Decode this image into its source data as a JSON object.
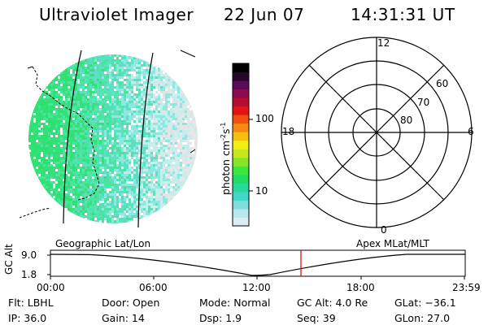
{
  "header": {
    "title": "Ultraviolet Imager",
    "date": "22 Jun 07",
    "time": "14:31:31 UT"
  },
  "colorbar": {
    "unit_label": "photon cm-2s-1",
    "ticks": [
      "100",
      "10"
    ],
    "palette": [
      "#d8eef0",
      "#b8e8ec",
      "#80dcdc",
      "#40d8c8",
      "#2ad89c",
      "#20dc60",
      "#3ae640",
      "#86e626",
      "#c8e61c",
      "#f0f010",
      "#f4c010",
      "#f48a10",
      "#f05010",
      "#e41414",
      "#b80c30",
      "#8c0a50",
      "#5a0a5a",
      "#28082a",
      "#000000"
    ]
  },
  "image_panel": {
    "left_label": "Geographic Lat/Lon",
    "palette": [
      "#2ee070",
      "#36e07a",
      "#48e4a0",
      "#5ce0c0",
      "#8ee8e0",
      "#c8ecec",
      "#e6e6e6"
    ]
  },
  "polar_plot": {
    "label": "Apex MLat/MLT",
    "mlt_labels": {
      "top": "12",
      "left": "18",
      "right": "6",
      "bottom": "0"
    },
    "mlat_labels": [
      "60",
      "70",
      "80"
    ]
  },
  "timeline": {
    "ylabel": "GC Alt",
    "y_ticks": [
      "9.0",
      "1.8"
    ],
    "x_ticks": [
      "00:00",
      "06:00",
      "12:00",
      "18:00",
      "23:59"
    ],
    "marker_time": "14:31",
    "marker_color": "#e01010"
  },
  "info": {
    "flt": "Flt: LBHL",
    "ip": "IP: 36.0",
    "door": "Door: Open",
    "gain": "Gain: 14",
    "mode": "Mode: Normal",
    "dsp": "Dsp:    1.9",
    "gcalt": "GC Alt: 4.0 Re",
    "seq": "Seq: 39",
    "glat": "GLat: −36.1",
    "glon": "GLon:  27.0"
  }
}
